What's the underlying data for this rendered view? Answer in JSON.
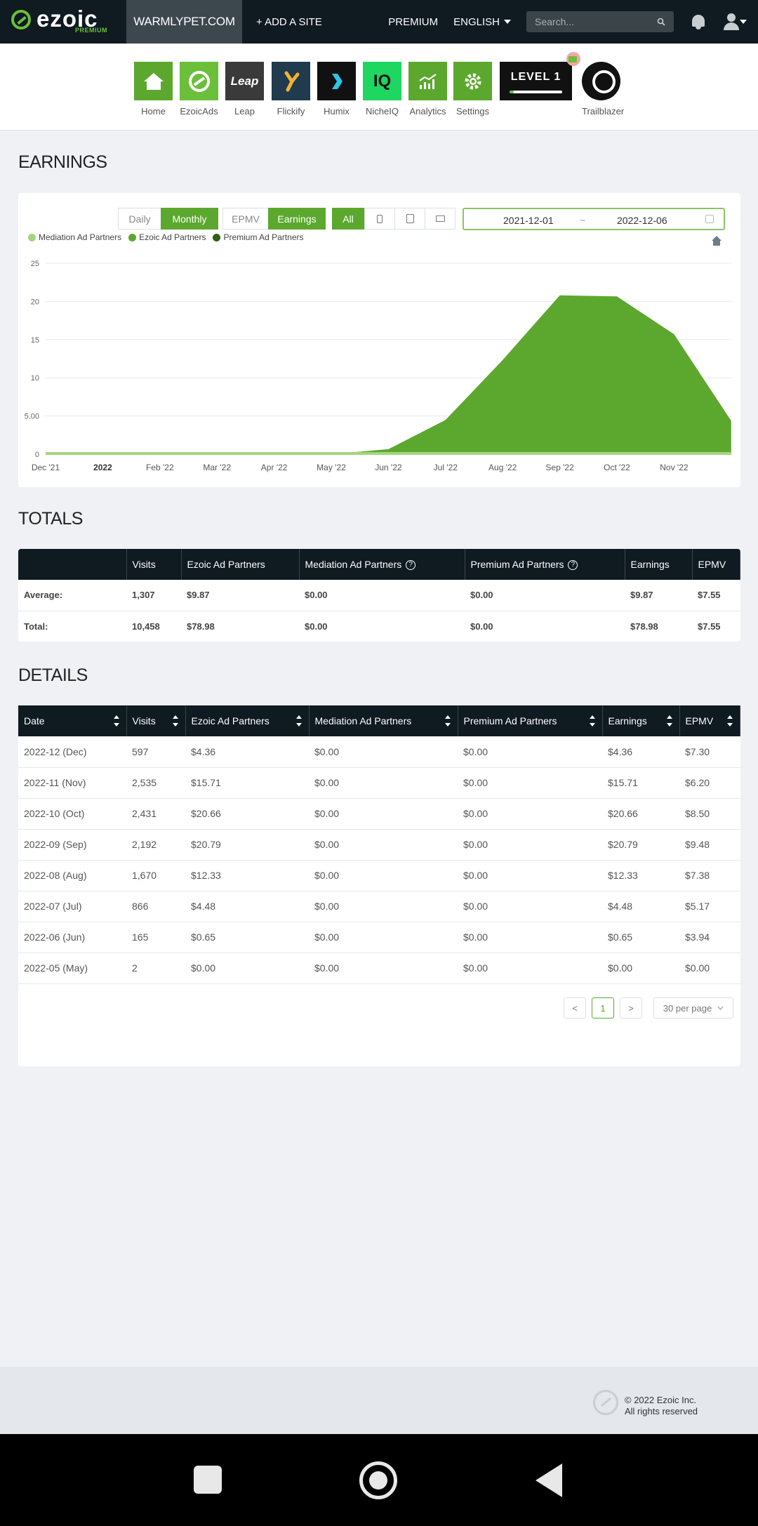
{
  "topbar": {
    "logo_text": "ezoic",
    "logo_sub": "PREMIUM",
    "site": "WARMLYPET.COM",
    "add_site": "+ ADD A SITE",
    "premium": "PREMIUM",
    "language": "ENGLISH",
    "search_placeholder": "Search..."
  },
  "apps": [
    {
      "label": "Home",
      "icon": "home-icon",
      "color": "#5ca82e"
    },
    {
      "label": "EzoicAds",
      "icon": "ezoic-logo-icon",
      "color": "#6bbf3a"
    },
    {
      "label": "Leap",
      "icon": "leap-logo-icon",
      "color": "#3a3a3a",
      "tile_text": "Leap"
    },
    {
      "label": "Flickify",
      "icon": "flickify-logo-icon",
      "color": "#1f3b4d"
    },
    {
      "label": "Humix",
      "icon": "humix-logo-icon",
      "color": "#111111"
    },
    {
      "label": "NicheIQ",
      "icon": "nicheiq-logo-icon",
      "color": "#1ed760",
      "tile_text": "IQ"
    },
    {
      "label": "Analytics",
      "icon": "analytics-icon",
      "color": "#5ca82e"
    },
    {
      "label": "Settings",
      "icon": "gear-icon",
      "color": "#5ca82e"
    }
  ],
  "level_badge": "LEVEL 1",
  "trailblazer_label": "Trailblazer",
  "earnings": {
    "heading": "EARNINGS",
    "controls": {
      "daily": "Daily",
      "monthly": "Monthly",
      "epmv": "EPMV",
      "earnings": "Earnings",
      "all": "All"
    },
    "date_from": "2021-12-01",
    "date_sep": "~",
    "date_to": "2022-12-06"
  },
  "chart_data": {
    "type": "area",
    "legend": [
      {
        "name": "Mediation Ad Partners",
        "color": "#a3d47e"
      },
      {
        "name": "Ezoic Ad Partners",
        "color": "#5ca82e"
      },
      {
        "name": "Premium Ad Partners",
        "color": "#2f5f16"
      }
    ],
    "x_labels": [
      "Dec '21",
      "2022",
      "Feb '22",
      "Mar '22",
      "Apr '22",
      "May '22",
      "Jun '22",
      "Jul '22",
      "Aug '22",
      "Sep '22",
      "Oct '22",
      "Nov '22"
    ],
    "y_ticks": [
      "25",
      "20",
      "15",
      "10",
      "5.00",
      "0"
    ],
    "ylim": [
      0,
      25
    ],
    "series": [
      {
        "name": "Ezoic Ad Partners",
        "values": [
          0,
          0,
          0,
          0,
          0,
          0,
          0.65,
          4.48,
          12.33,
          20.79,
          20.66,
          15.71,
          4.36
        ]
      },
      {
        "name": "Mediation Ad Partners",
        "values": [
          0,
          0,
          0,
          0,
          0,
          0,
          0,
          0,
          0,
          0,
          0,
          0,
          0
        ]
      },
      {
        "name": "Premium Ad Partners",
        "values": [
          0,
          0,
          0,
          0,
          0,
          0,
          0,
          0,
          0,
          0,
          0,
          0,
          0
        ]
      }
    ]
  },
  "totals": {
    "heading": "TOTALS",
    "columns": [
      "",
      "Visits",
      "Ezoic Ad Partners",
      "Mediation Ad Partners",
      "Premium Ad Partners",
      "Earnings",
      "EPMV"
    ],
    "rows": [
      [
        "Average:",
        "1,307",
        "$9.87",
        "$0.00",
        "$0.00",
        "$9.87",
        "$7.55"
      ],
      [
        "Total:",
        "10,458",
        "$78.98",
        "$0.00",
        "$0.00",
        "$78.98",
        "$7.55"
      ]
    ]
  },
  "details": {
    "heading": "DETAILS",
    "columns": [
      "Date",
      "Visits",
      "Ezoic Ad Partners",
      "Mediation Ad Partners",
      "Premium Ad Partners",
      "Earnings",
      "EPMV"
    ],
    "rows": [
      [
        "2022-12 (Dec)",
        "597",
        "$4.36",
        "$0.00",
        "$0.00",
        "$4.36",
        "$7.30"
      ],
      [
        "2022-11 (Nov)",
        "2,535",
        "$15.71",
        "$0.00",
        "$0.00",
        "$15.71",
        "$6.20"
      ],
      [
        "2022-10 (Oct)",
        "2,431",
        "$20.66",
        "$0.00",
        "$0.00",
        "$20.66",
        "$8.50"
      ],
      [
        "2022-09 (Sep)",
        "2,192",
        "$20.79",
        "$0.00",
        "$0.00",
        "$20.79",
        "$9.48"
      ],
      [
        "2022-08 (Aug)",
        "1,670",
        "$12.33",
        "$0.00",
        "$0.00",
        "$12.33",
        "$7.38"
      ],
      [
        "2022-07 (Jul)",
        "866",
        "$4.48",
        "$0.00",
        "$0.00",
        "$4.48",
        "$5.17"
      ],
      [
        "2022-06 (Jun)",
        "165",
        "$0.65",
        "$0.00",
        "$0.00",
        "$0.65",
        "$3.94"
      ],
      [
        "2022-05 (May)",
        "2",
        "$0.00",
        "$0.00",
        "$0.00",
        "$0.00",
        "$0.00"
      ]
    ],
    "pagination": {
      "prev": "<",
      "page": "1",
      "next": ">",
      "per_page": "30 per page"
    }
  },
  "footer": {
    "copyright": "© 2022 Ezoic Inc.",
    "rights": "All rights reserved"
  }
}
